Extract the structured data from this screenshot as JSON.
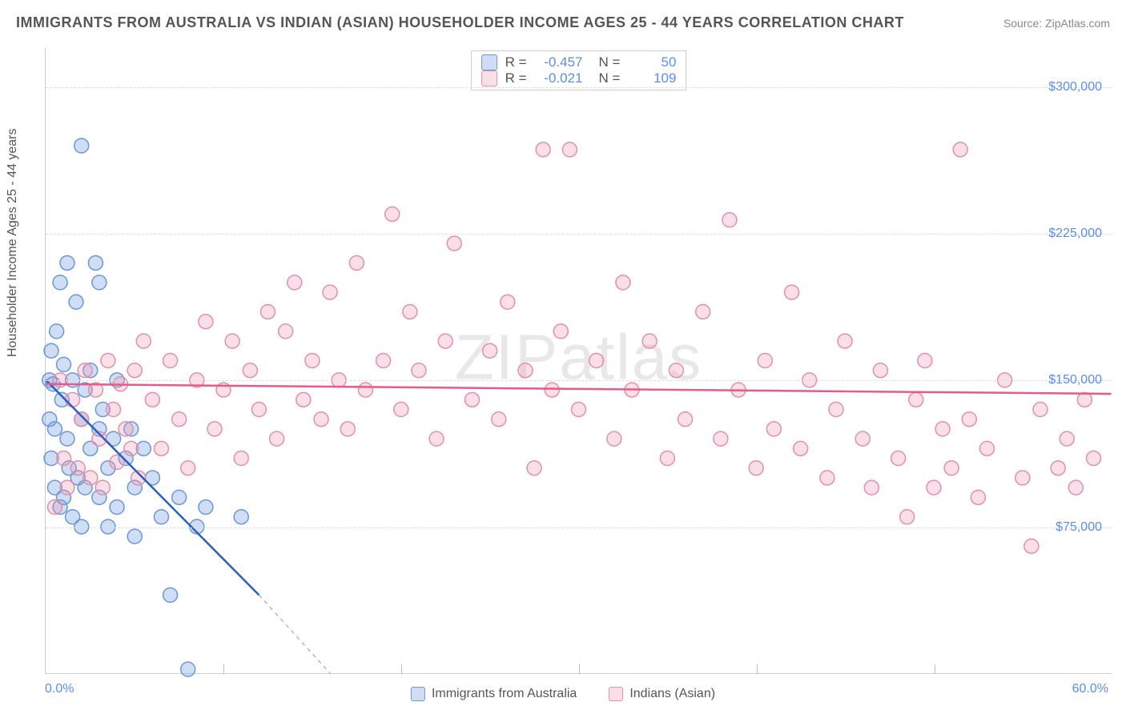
{
  "title": "IMMIGRANTS FROM AUSTRALIA VS INDIAN (ASIAN) HOUSEHOLDER INCOME AGES 25 - 44 YEARS CORRELATION CHART",
  "source": "Source: ZipAtlas.com",
  "watermark_a": "ZIP",
  "watermark_b": "atlas",
  "ylabel": "Householder Income Ages 25 - 44 years",
  "xlim": [
    0,
    60
  ],
  "ylim": [
    0,
    320000
  ],
  "xtick_left": "0.0%",
  "xtick_right": "60.0%",
  "yticks": [
    {
      "v": 75000,
      "label": "$75,000"
    },
    {
      "v": 150000,
      "label": "$150,000"
    },
    {
      "v": 225000,
      "label": "$225,000"
    },
    {
      "v": 300000,
      "label": "$300,000"
    }
  ],
  "xticks_minor": [
    10,
    20,
    30,
    40,
    50
  ],
  "colors": {
    "blue_fill": "rgba(120,160,225,0.35)",
    "blue_stroke": "#6a97d8",
    "pink_fill": "rgba(240,150,175,0.30)",
    "pink_stroke": "#e190a8",
    "blue_line": "#2c5fc0",
    "pink_line": "#e75a8a",
    "grid": "#dddddd",
    "tick_text": "#5b8def"
  },
  "series": [
    {
      "name": "Immigrants from Australia",
      "color_key": "blue",
      "R": "-0.457",
      "N": "50",
      "trend": {
        "x1": 0,
        "y1": 150000,
        "x2": 12,
        "y2": 40000,
        "dash_to_x": 16,
        "dash_to_y": 0
      },
      "points": [
        [
          0.2,
          150000
        ],
        [
          0.2,
          130000
        ],
        [
          0.3,
          165000
        ],
        [
          0.3,
          110000
        ],
        [
          0.4,
          148000
        ],
        [
          0.5,
          125000
        ],
        [
          0.5,
          95000
        ],
        [
          0.6,
          175000
        ],
        [
          0.8,
          200000
        ],
        [
          0.8,
          85000
        ],
        [
          0.9,
          140000
        ],
        [
          1.0,
          158000
        ],
        [
          1.0,
          90000
        ],
        [
          1.2,
          210000
        ],
        [
          1.2,
          120000
        ],
        [
          1.3,
          105000
        ],
        [
          1.5,
          150000
        ],
        [
          1.5,
          80000
        ],
        [
          1.7,
          190000
        ],
        [
          1.8,
          100000
        ],
        [
          2.0,
          270000
        ],
        [
          2.0,
          130000
        ],
        [
          2.0,
          75000
        ],
        [
          2.2,
          145000
        ],
        [
          2.2,
          95000
        ],
        [
          2.5,
          155000
        ],
        [
          2.5,
          115000
        ],
        [
          2.8,
          210000
        ],
        [
          3.0,
          125000
        ],
        [
          3.0,
          90000
        ],
        [
          3.0,
          200000
        ],
        [
          3.2,
          135000
        ],
        [
          3.5,
          105000
        ],
        [
          3.5,
          75000
        ],
        [
          3.8,
          120000
        ],
        [
          4.0,
          85000
        ],
        [
          4.0,
          150000
        ],
        [
          4.5,
          110000
        ],
        [
          4.8,
          125000
        ],
        [
          5.0,
          95000
        ],
        [
          5.0,
          70000
        ],
        [
          5.5,
          115000
        ],
        [
          6.0,
          100000
        ],
        [
          6.5,
          80000
        ],
        [
          7.0,
          40000
        ],
        [
          7.5,
          90000
        ],
        [
          8.0,
          2000
        ],
        [
          8.5,
          75000
        ],
        [
          9.0,
          85000
        ],
        [
          11.0,
          80000
        ]
      ]
    },
    {
      "name": "Indians (Asian)",
      "color_key": "pink",
      "R": "-0.021",
      "N": "109",
      "trend": {
        "x1": 0,
        "y1": 148000,
        "x2": 60,
        "y2": 143000
      },
      "points": [
        [
          0.5,
          85000
        ],
        [
          0.8,
          150000
        ],
        [
          1.0,
          110000
        ],
        [
          1.2,
          95000
        ],
        [
          1.5,
          140000
        ],
        [
          1.8,
          105000
        ],
        [
          2.0,
          130000
        ],
        [
          2.2,
          155000
        ],
        [
          2.5,
          100000
        ],
        [
          2.8,
          145000
        ],
        [
          3.0,
          120000
        ],
        [
          3.2,
          95000
        ],
        [
          3.5,
          160000
        ],
        [
          3.8,
          135000
        ],
        [
          4.0,
          108000
        ],
        [
          4.2,
          148000
        ],
        [
          4.5,
          125000
        ],
        [
          4.8,
          115000
        ],
        [
          5.0,
          155000
        ],
        [
          5.2,
          100000
        ],
        [
          5.5,
          170000
        ],
        [
          6.0,
          140000
        ],
        [
          6.5,
          115000
        ],
        [
          7.0,
          160000
        ],
        [
          7.5,
          130000
        ],
        [
          8.0,
          105000
        ],
        [
          8.5,
          150000
        ],
        [
          9.0,
          180000
        ],
        [
          9.5,
          125000
        ],
        [
          10.0,
          145000
        ],
        [
          10.5,
          170000
        ],
        [
          11.0,
          110000
        ],
        [
          11.5,
          155000
        ],
        [
          12.0,
          135000
        ],
        [
          12.5,
          185000
        ],
        [
          13.0,
          120000
        ],
        [
          13.5,
          175000
        ],
        [
          14.0,
          200000
        ],
        [
          14.5,
          140000
        ],
        [
          15.0,
          160000
        ],
        [
          15.5,
          130000
        ],
        [
          16.0,
          195000
        ],
        [
          16.5,
          150000
        ],
        [
          17.0,
          125000
        ],
        [
          17.5,
          210000
        ],
        [
          18.0,
          145000
        ],
        [
          19.0,
          160000
        ],
        [
          19.5,
          235000
        ],
        [
          20.0,
          135000
        ],
        [
          20.5,
          185000
        ],
        [
          21.0,
          155000
        ],
        [
          22.0,
          120000
        ],
        [
          22.5,
          170000
        ],
        [
          23.0,
          220000
        ],
        [
          24.0,
          140000
        ],
        [
          25.0,
          165000
        ],
        [
          25.5,
          130000
        ],
        [
          26.0,
          190000
        ],
        [
          27.0,
          155000
        ],
        [
          27.5,
          105000
        ],
        [
          28.0,
          268000
        ],
        [
          28.5,
          145000
        ],
        [
          29.0,
          175000
        ],
        [
          29.5,
          268000
        ],
        [
          30.0,
          135000
        ],
        [
          31.0,
          160000
        ],
        [
          32.0,
          120000
        ],
        [
          32.5,
          200000
        ],
        [
          33.0,
          145000
        ],
        [
          34.0,
          170000
        ],
        [
          35.0,
          110000
        ],
        [
          35.5,
          155000
        ],
        [
          36.0,
          130000
        ],
        [
          37.0,
          185000
        ],
        [
          38.0,
          120000
        ],
        [
          38.5,
          232000
        ],
        [
          39.0,
          145000
        ],
        [
          40.0,
          105000
        ],
        [
          40.5,
          160000
        ],
        [
          41.0,
          125000
        ],
        [
          42.0,
          195000
        ],
        [
          42.5,
          115000
        ],
        [
          43.0,
          150000
        ],
        [
          44.0,
          100000
        ],
        [
          44.5,
          135000
        ],
        [
          45.0,
          170000
        ],
        [
          46.0,
          120000
        ],
        [
          46.5,
          95000
        ],
        [
          47.0,
          155000
        ],
        [
          48.0,
          110000
        ],
        [
          48.5,
          80000
        ],
        [
          49.0,
          140000
        ],
        [
          49.5,
          160000
        ],
        [
          50.0,
          95000
        ],
        [
          50.5,
          125000
        ],
        [
          51.0,
          105000
        ],
        [
          51.5,
          268000
        ],
        [
          52.0,
          130000
        ],
        [
          52.5,
          90000
        ],
        [
          53.0,
          115000
        ],
        [
          54.0,
          150000
        ],
        [
          55.0,
          100000
        ],
        [
          55.5,
          65000
        ],
        [
          56.0,
          135000
        ],
        [
          57.0,
          105000
        ],
        [
          57.5,
          120000
        ],
        [
          58.0,
          95000
        ],
        [
          58.5,
          140000
        ],
        [
          59.0,
          110000
        ]
      ]
    }
  ],
  "legend_bottom": [
    {
      "label": "Immigrants from Australia",
      "color_key": "blue"
    },
    {
      "label": "Indians (Asian)",
      "color_key": "pink"
    }
  ]
}
